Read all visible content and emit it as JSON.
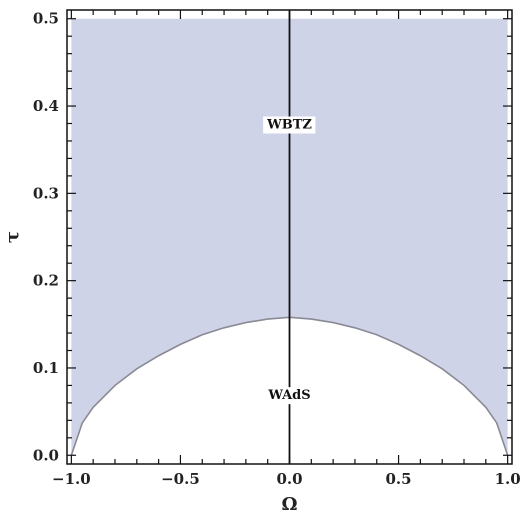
{
  "chart_data": {
    "type": "area",
    "title": "",
    "xlabel": "Ω",
    "ylabel": "τ",
    "xlim": [
      -1.02,
      1.02
    ],
    "ylim": [
      -0.01,
      0.51
    ],
    "x_ticks": [
      -1.0,
      -0.5,
      0.0,
      0.5,
      1.0
    ],
    "x_tick_labels": [
      "−1.0",
      "−0.5",
      "0.0",
      "0.5",
      "1.0"
    ],
    "y_ticks": [
      0.0,
      0.1,
      0.2,
      0.3,
      0.4,
      0.5
    ],
    "y_tick_labels": [
      "0.0",
      "0.1",
      "0.2",
      "0.3",
      "0.4",
      "0.5"
    ],
    "grid": false,
    "boundary_curve": {
      "x": [
        -1.0,
        -0.95,
        -0.9,
        -0.8,
        -0.7,
        -0.6,
        -0.5,
        -0.4,
        -0.3,
        -0.2,
        -0.1,
        0.0,
        0.1,
        0.2,
        0.3,
        0.4,
        0.5,
        0.6,
        0.7,
        0.8,
        0.9,
        0.95,
        1.0
      ],
      "y": [
        0.0,
        0.037,
        0.055,
        0.08,
        0.099,
        0.114,
        0.127,
        0.138,
        0.146,
        0.152,
        0.156,
        0.158,
        0.156,
        0.152,
        0.146,
        0.138,
        0.127,
        0.114,
        0.099,
        0.08,
        0.055,
        0.037,
        0.0
      ]
    },
    "vertical_line_x": 0.0,
    "regions": [
      {
        "name": "WBTZ",
        "x": 0.0,
        "y": 0.38,
        "fill": "#cfd3e8"
      },
      {
        "name": "WAdS",
        "x": 0.0,
        "y": 0.07,
        "fill": "#ffffff"
      }
    ],
    "colors": {
      "shaded": "#cfd3e8",
      "boundary": "#8a8a96",
      "frame": "#111111"
    }
  }
}
